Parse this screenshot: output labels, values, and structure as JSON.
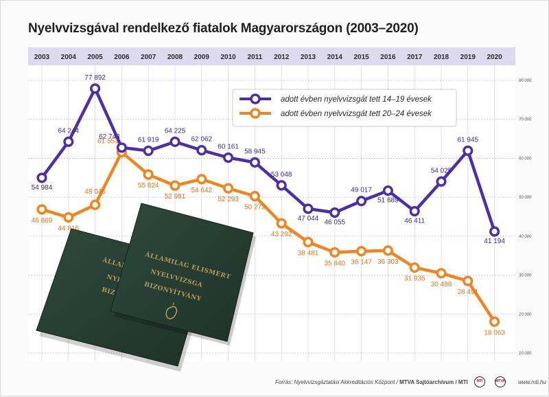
{
  "title": "Nyelvvizsgával rendelkező fiatalok Magyarországon (2003–2020)",
  "chart_data": {
    "type": "line",
    "title": "Nyelvvizsgával rendelkező fiatalok Magyarországon (2003–2020)",
    "x": [
      "2003",
      "2004",
      "2005",
      "2006",
      "2007",
      "2008",
      "2009",
      "2010",
      "2011",
      "2012",
      "2013",
      "2014",
      "2015",
      "2016",
      "2017",
      "2018",
      "2019",
      "2020"
    ],
    "yticks": [
      "10 000",
      "20 000",
      "30 000",
      "40 000",
      "50 000",
      "60 000",
      "70 000",
      "80 000"
    ],
    "ylim": [
      10000,
      80000
    ],
    "grid": true,
    "legend_position": "top-right",
    "series": [
      {
        "name": "adott évben nyelvvizsgát tett 14–19 évesek",
        "color": "#4a2fa8",
        "values": [
          54984,
          64244,
          77892,
          62743,
          61919,
          64225,
          62062,
          60161,
          58945,
          53048,
          47044,
          46055,
          49017,
          51689,
          46411,
          54025,
          61945,
          41194
        ],
        "labels": [
          "54 984",
          "64 244",
          "77 892",
          "62 743",
          "61 919",
          "64 225",
          "62 062",
          "60 161",
          "58 945",
          "53 048",
          "47 044",
          "46 055",
          "49 017",
          "51 689",
          "46 411",
          "54 025",
          "61 945",
          "41 194"
        ]
      },
      {
        "name": "adott évben nyelvvizsgát tett 20–24 évesek",
        "color": "#f0841e",
        "values": [
          46869,
          44816,
          48046,
          61551,
          55824,
          52981,
          54642,
          52293,
          50272,
          43292,
          38481,
          35840,
          36147,
          36303,
          31935,
          30488,
          28491,
          18063
        ],
        "labels": [
          "46 869",
          "44 816",
          "48 046",
          "61 551",
          "55 824",
          "52 981",
          "54 642",
          "52 293",
          "50 272",
          "43 292",
          "38 481",
          "35 840",
          "36 147",
          "36 303",
          "31 935",
          "30 488",
          "28 491",
          "18 063"
        ]
      }
    ]
  },
  "certificate": {
    "line1": "ÁLLAMILAG ELISMERT",
    "line2": "NYELVVIZSGA",
    "line3": "BIZONYÍTVÁNY"
  },
  "footer": {
    "source": "Forrás: Nyelvvizsgáztatási Akkreditációs Központ /",
    "agency": "MTVA Sajtóarchívum / MTI",
    "site": "www.mti.hu",
    "logo1": "MTI",
    "logo2": "MTVA"
  }
}
